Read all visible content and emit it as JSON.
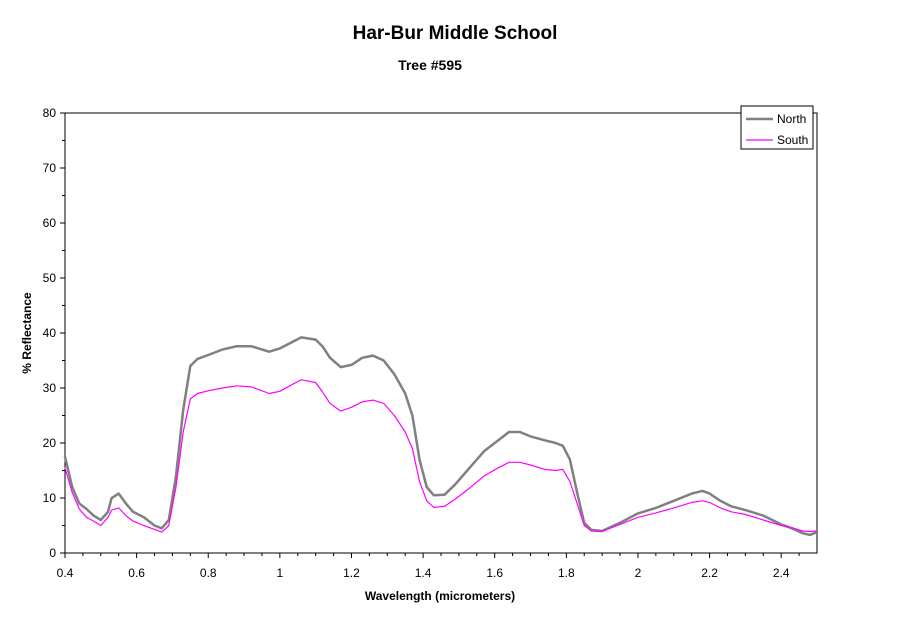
{
  "chart_data": {
    "type": "line",
    "title": "Har-Bur Middle School",
    "subtitle": "Tree #595",
    "xlabel": "Wavelength (micrometers)",
    "ylabel": "% Reflectance",
    "xlim": [
      0.4,
      2.5
    ],
    "ylim": [
      0,
      80
    ],
    "x_ticks": [
      "0.4",
      "0.6",
      "0.8",
      "1",
      "1.2",
      "1.4",
      "1.6",
      "1.8",
      "2",
      "2.2",
      "2.4"
    ],
    "y_ticks": [
      "0",
      "10",
      "20",
      "30",
      "40",
      "50",
      "60",
      "70",
      "80"
    ],
    "grid": false,
    "legend_position": "top-right",
    "series": [
      {
        "name": "North",
        "color": "#808080",
        "points": [
          [
            0.4,
            17.5
          ],
          [
            0.42,
            12.0
          ],
          [
            0.44,
            9.0
          ],
          [
            0.46,
            8.0
          ],
          [
            0.48,
            6.8
          ],
          [
            0.5,
            6.0
          ],
          [
            0.52,
            7.5
          ],
          [
            0.53,
            10.0
          ],
          [
            0.55,
            10.8
          ],
          [
            0.57,
            9.0
          ],
          [
            0.59,
            7.5
          ],
          [
            0.62,
            6.5
          ],
          [
            0.65,
            5.0
          ],
          [
            0.67,
            4.5
          ],
          [
            0.69,
            6.0
          ],
          [
            0.71,
            14.0
          ],
          [
            0.73,
            26.0
          ],
          [
            0.75,
            34.0
          ],
          [
            0.77,
            35.3
          ],
          [
            0.8,
            36.0
          ],
          [
            0.84,
            37.0
          ],
          [
            0.88,
            37.6
          ],
          [
            0.92,
            37.6
          ],
          [
            0.95,
            37.0
          ],
          [
            0.97,
            36.6
          ],
          [
            1.0,
            37.2
          ],
          [
            1.03,
            38.2
          ],
          [
            1.06,
            39.2
          ],
          [
            1.1,
            38.8
          ],
          [
            1.12,
            37.5
          ],
          [
            1.14,
            35.5
          ],
          [
            1.17,
            33.8
          ],
          [
            1.2,
            34.2
          ],
          [
            1.23,
            35.5
          ],
          [
            1.26,
            35.9
          ],
          [
            1.29,
            35.0
          ],
          [
            1.32,
            32.5
          ],
          [
            1.35,
            29.0
          ],
          [
            1.37,
            25.0
          ],
          [
            1.39,
            17.0
          ],
          [
            1.41,
            12.0
          ],
          [
            1.43,
            10.5
          ],
          [
            1.46,
            10.6
          ],
          [
            1.49,
            12.5
          ],
          [
            1.53,
            15.5
          ],
          [
            1.57,
            18.5
          ],
          [
            1.61,
            20.5
          ],
          [
            1.64,
            22.0
          ],
          [
            1.67,
            22.0
          ],
          [
            1.7,
            21.2
          ],
          [
            1.74,
            20.5
          ],
          [
            1.77,
            20.0
          ],
          [
            1.79,
            19.5
          ],
          [
            1.81,
            17.0
          ],
          [
            1.83,
            11.0
          ],
          [
            1.85,
            5.5
          ],
          [
            1.87,
            4.2
          ],
          [
            1.9,
            4.0
          ],
          [
            1.95,
            5.5
          ],
          [
            2.0,
            7.2
          ],
          [
            2.05,
            8.2
          ],
          [
            2.1,
            9.5
          ],
          [
            2.15,
            10.8
          ],
          [
            2.18,
            11.3
          ],
          [
            2.2,
            10.8
          ],
          [
            2.23,
            9.5
          ],
          [
            2.26,
            8.5
          ],
          [
            2.3,
            7.8
          ],
          [
            2.35,
            6.8
          ],
          [
            2.4,
            5.2
          ],
          [
            2.43,
            4.5
          ],
          [
            2.46,
            3.6
          ],
          [
            2.48,
            3.3
          ],
          [
            2.5,
            3.8
          ]
        ]
      },
      {
        "name": "South",
        "color": "#ff00ff",
        "points": [
          [
            0.4,
            15.5
          ],
          [
            0.42,
            11.0
          ],
          [
            0.44,
            8.0
          ],
          [
            0.46,
            6.5
          ],
          [
            0.48,
            5.8
          ],
          [
            0.5,
            5.0
          ],
          [
            0.52,
            6.5
          ],
          [
            0.53,
            7.8
          ],
          [
            0.55,
            8.2
          ],
          [
            0.57,
            6.8
          ],
          [
            0.59,
            5.8
          ],
          [
            0.62,
            5.0
          ],
          [
            0.65,
            4.3
          ],
          [
            0.67,
            3.8
          ],
          [
            0.69,
            5.0
          ],
          [
            0.71,
            12.0
          ],
          [
            0.73,
            22.0
          ],
          [
            0.75,
            28.0
          ],
          [
            0.77,
            29.0
          ],
          [
            0.8,
            29.5
          ],
          [
            0.84,
            30.0
          ],
          [
            0.88,
            30.4
          ],
          [
            0.92,
            30.2
          ],
          [
            0.95,
            29.5
          ],
          [
            0.97,
            29.0
          ],
          [
            1.0,
            29.4
          ],
          [
            1.03,
            30.5
          ],
          [
            1.06,
            31.5
          ],
          [
            1.1,
            31.0
          ],
          [
            1.12,
            29.2
          ],
          [
            1.14,
            27.2
          ],
          [
            1.17,
            25.8
          ],
          [
            1.2,
            26.5
          ],
          [
            1.23,
            27.5
          ],
          [
            1.26,
            27.8
          ],
          [
            1.29,
            27.2
          ],
          [
            1.32,
            25.0
          ],
          [
            1.35,
            22.0
          ],
          [
            1.37,
            19.0
          ],
          [
            1.39,
            13.0
          ],
          [
            1.41,
            9.5
          ],
          [
            1.43,
            8.3
          ],
          [
            1.46,
            8.5
          ],
          [
            1.49,
            9.8
          ],
          [
            1.53,
            11.8
          ],
          [
            1.57,
            14.0
          ],
          [
            1.61,
            15.5
          ],
          [
            1.64,
            16.5
          ],
          [
            1.67,
            16.5
          ],
          [
            1.7,
            16.0
          ],
          [
            1.74,
            15.2
          ],
          [
            1.77,
            15.0
          ],
          [
            1.79,
            15.2
          ],
          [
            1.81,
            13.0
          ],
          [
            1.83,
            9.0
          ],
          [
            1.85,
            5.0
          ],
          [
            1.87,
            4.0
          ],
          [
            1.9,
            3.9
          ],
          [
            1.95,
            5.2
          ],
          [
            2.0,
            6.5
          ],
          [
            2.05,
            7.3
          ],
          [
            2.1,
            8.2
          ],
          [
            2.15,
            9.2
          ],
          [
            2.18,
            9.5
          ],
          [
            2.2,
            9.2
          ],
          [
            2.23,
            8.2
          ],
          [
            2.26,
            7.5
          ],
          [
            2.3,
            7.0
          ],
          [
            2.35,
            6.0
          ],
          [
            2.4,
            5.0
          ],
          [
            2.43,
            4.6
          ],
          [
            2.46,
            4.0
          ],
          [
            2.48,
            3.9
          ],
          [
            2.5,
            4.0
          ]
        ]
      }
    ]
  }
}
